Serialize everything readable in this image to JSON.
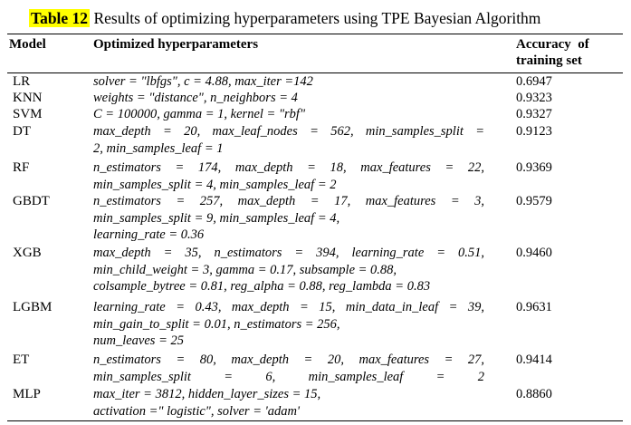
{
  "caption": {
    "label": "Table 12",
    "text": " Results of optimizing hyperparameters using TPE Bayesian Algorithm"
  },
  "headers": {
    "model": "Model",
    "params": "Optimized hyperparameters",
    "accuracy_line1": "Accuracy  of",
    "accuracy_line2": "training set"
  },
  "rows": [
    {
      "model": "LR",
      "accuracy": "0.6947",
      "lines": [
        "solver = \"lbfgs\", c = 4.88, max_iter =142"
      ]
    },
    {
      "model": "KNN",
      "accuracy": "0.9323",
      "lines": [
        "weights = \"distance\", n_neighbors = 4"
      ]
    },
    {
      "model": "SVM",
      "accuracy": "0.9327",
      "lines": [
        "C = 100000, gamma = 1, kernel = \"rbf\""
      ]
    },
    {
      "model": "DT",
      "accuracy": "0.9123",
      "lines": [
        "max_depth = 20, max_leaf_nodes = 562, min_samples_split =",
        "2, min_samples_leaf = 1"
      ]
    },
    {
      "model": "RF",
      "accuracy": "0.9369",
      "lines": [
        "n_estimators = 174, max_depth = 18, max_features = 22,",
        "min_samples_split = 4, min_samples_leaf = 2"
      ]
    },
    {
      "model": "GBDT",
      "accuracy": "0.9579",
      "lines": [
        "n_estimators = 257, max_depth = 17, max_features = 3,",
        "min_samples_split = 9, min_samples_leaf = 4,",
        "learning_rate = 0.36"
      ]
    },
    {
      "model": "XGB",
      "accuracy": "0.9460",
      "lines": [
        "max_depth = 35, n_estimators = 394, learning_rate = 0.51,",
        "min_child_weight = 3, gamma = 0.17, subsample = 0.88,",
        "colsample_bytree = 0.81, reg_alpha = 0.88, reg_lambda = 0.83"
      ]
    },
    {
      "model": "LGBM",
      "accuracy": "0.9631",
      "lines": [
        "learning_rate = 0.43, max_depth = 15, min_data_in_leaf = 39,",
        "min_gain_to_split = 0.01, n_estimators = 256,",
        "num_leaves = 25"
      ]
    },
    {
      "model": "ET",
      "accuracy": "0.9414",
      "lines": [
        "n_estimators = 80, max_depth = 20, max_features = 27,",
        "min_samples_split = 6, min_samples_leaf = 2"
      ]
    },
    {
      "model": "MLP",
      "accuracy": "0.8860",
      "lines": [
        "max_iter = 3812, hidden_layer_sizes = 15,",
        "activation =\" logistic\", solver = 'adam'"
      ]
    }
  ]
}
